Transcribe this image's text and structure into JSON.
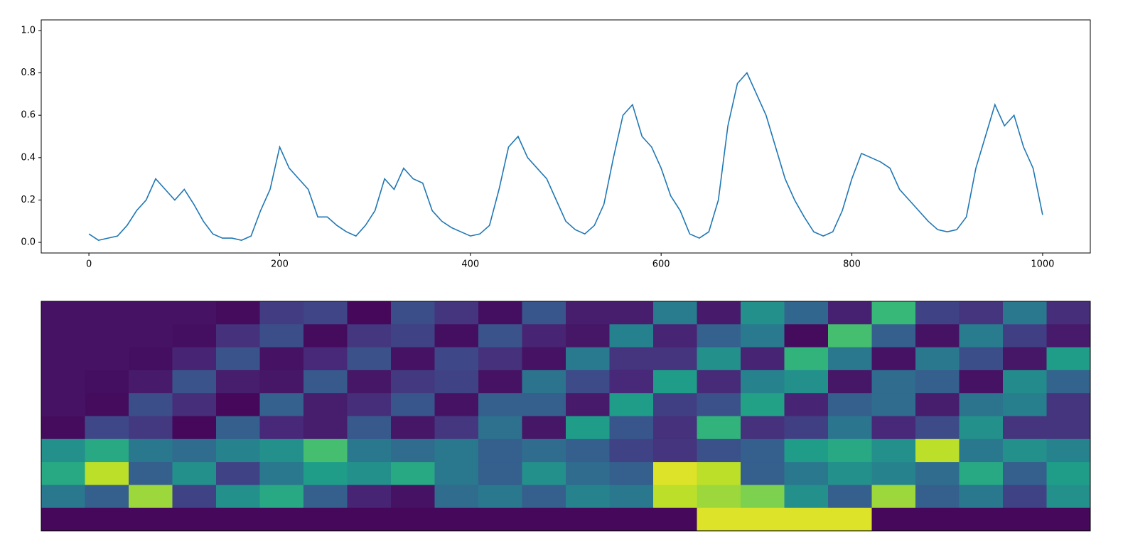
{
  "chart_data": [
    {
      "type": "line",
      "x": [
        0,
        10,
        20,
        30,
        40,
        50,
        60,
        70,
        80,
        90,
        100,
        110,
        120,
        130,
        140,
        150,
        160,
        170,
        180,
        190,
        200,
        210,
        220,
        230,
        240,
        250,
        260,
        270,
        280,
        290,
        300,
        310,
        320,
        330,
        340,
        350,
        360,
        370,
        380,
        390,
        400,
        410,
        420,
        430,
        440,
        450,
        460,
        470,
        480,
        490,
        500,
        510,
        520,
        530,
        540,
        550,
        560,
        570,
        580,
        590,
        600,
        610,
        620,
        630,
        640,
        650,
        660,
        670,
        680,
        690,
        700,
        710,
        720,
        730,
        740,
        750,
        760,
        770,
        780,
        790,
        800,
        810,
        820,
        830,
        840,
        850,
        860,
        870,
        880,
        890,
        900,
        910,
        920,
        930,
        940,
        950,
        960,
        970,
        980,
        990,
        1000
      ],
      "series": [
        {
          "color": "#1f77b4",
          "values": [
            0.04,
            0.01,
            0.02,
            0.03,
            0.08,
            0.15,
            0.2,
            0.3,
            0.25,
            0.2,
            0.25,
            0.18,
            0.1,
            0.04,
            0.02,
            0.02,
            0.01,
            0.03,
            0.15,
            0.25,
            0.45,
            0.35,
            0.3,
            0.25,
            0.12,
            0.12,
            0.08,
            0.05,
            0.03,
            0.08,
            0.15,
            0.3,
            0.25,
            0.35,
            0.3,
            0.28,
            0.15,
            0.1,
            0.07,
            0.05,
            0.03,
            0.04,
            0.08,
            0.25,
            0.45,
            0.5,
            0.4,
            0.35,
            0.3,
            0.2,
            0.1,
            0.06,
            0.04,
            0.08,
            0.18,
            0.4,
            0.6,
            0.65,
            0.5,
            0.45,
            0.35,
            0.22,
            0.15,
            0.04,
            0.02,
            0.05,
            0.2,
            0.55,
            0.75,
            0.8,
            0.7,
            0.6,
            0.45,
            0.3,
            0.2,
            0.12,
            0.05,
            0.03,
            0.05,
            0.15,
            0.3,
            0.42,
            0.4,
            0.38,
            0.35,
            0.25,
            0.2,
            0.15,
            0.1,
            0.06,
            0.05,
            0.06,
            0.12,
            0.35,
            0.5,
            0.65,
            0.55,
            0.6,
            0.45,
            0.35,
            0.13
          ]
        }
      ],
      "xlim": [
        -50,
        1050
      ],
      "xticks": [
        0,
        200,
        400,
        600,
        800,
        1000
      ],
      "ylim": [
        -0.05,
        1.05
      ],
      "yticks": [
        {
          "value": 0,
          "label": "0.0"
        },
        {
          "value": 0.2,
          "label": "0.2"
        },
        {
          "value": 0.4,
          "label": "0.4"
        },
        {
          "value": 0.6,
          "label": "0.6"
        },
        {
          "value": 0.8,
          "label": "0.8"
        },
        {
          "value": 1,
          "label": "1.0"
        }
      ]
    },
    {
      "type": "heatmap",
      "cmap": "viridis",
      "values": [
        [
          0.05,
          0.05,
          0.05,
          0.05,
          0.03,
          0.18,
          0.21,
          0.02,
          0.24,
          0.15,
          0.04,
          0.27,
          0.08,
          0.08,
          0.42,
          0.07,
          0.5,
          0.33,
          0.09,
          0.67,
          0.2,
          0.15,
          0.4,
          0.13
        ],
        [
          0.05,
          0.05,
          0.05,
          0.04,
          0.14,
          0.24,
          0.03,
          0.16,
          0.2,
          0.04,
          0.26,
          0.1,
          0.06,
          0.44,
          0.1,
          0.31,
          0.41,
          0.03,
          0.7,
          0.3,
          0.05,
          0.42,
          0.19,
          0.07
        ],
        [
          0.05,
          0.05,
          0.04,
          0.1,
          0.26,
          0.05,
          0.11,
          0.25,
          0.05,
          0.22,
          0.14,
          0.05,
          0.41,
          0.15,
          0.15,
          0.5,
          0.1,
          0.65,
          0.4,
          0.05,
          0.4,
          0.24,
          0.06,
          0.55
        ],
        [
          0.05,
          0.04,
          0.07,
          0.26,
          0.08,
          0.06,
          0.28,
          0.06,
          0.17,
          0.2,
          0.05,
          0.38,
          0.23,
          0.11,
          0.55,
          0.12,
          0.45,
          0.5,
          0.06,
          0.35,
          0.3,
          0.05,
          0.48,
          0.32
        ],
        [
          0.05,
          0.03,
          0.24,
          0.13,
          0.02,
          0.31,
          0.08,
          0.13,
          0.27,
          0.05,
          0.3,
          0.3,
          0.07,
          0.55,
          0.19,
          0.25,
          0.57,
          0.1,
          0.3,
          0.35,
          0.08,
          0.38,
          0.43,
          0.15
        ],
        [
          0.03,
          0.22,
          0.17,
          0.02,
          0.3,
          0.11,
          0.08,
          0.28,
          0.06,
          0.16,
          0.37,
          0.06,
          0.55,
          0.27,
          0.14,
          0.65,
          0.14,
          0.19,
          0.39,
          0.11,
          0.23,
          0.5,
          0.15,
          0.15
        ],
        [
          0.5,
          0.6,
          0.4,
          0.35,
          0.45,
          0.5,
          0.7,
          0.4,
          0.35,
          0.4,
          0.3,
          0.35,
          0.3,
          0.2,
          0.15,
          0.25,
          0.3,
          0.55,
          0.6,
          0.5,
          0.9,
          0.4,
          0.5,
          0.45
        ],
        [
          0.6,
          0.9,
          0.3,
          0.5,
          0.2,
          0.4,
          0.55,
          0.5,
          0.6,
          0.4,
          0.3,
          0.5,
          0.35,
          0.3,
          0.95,
          0.9,
          0.3,
          0.4,
          0.5,
          0.45,
          0.35,
          0.6,
          0.3,
          0.55
        ],
        [
          0.4,
          0.3,
          0.85,
          0.2,
          0.5,
          0.6,
          0.3,
          0.1,
          0.05,
          0.35,
          0.4,
          0.3,
          0.45,
          0.4,
          0.9,
          0.85,
          0.8,
          0.5,
          0.3,
          0.85,
          0.3,
          0.4,
          0.2,
          0.5
        ],
        [
          0.02,
          0.02,
          0.02,
          0.02,
          0.02,
          0.02,
          0.02,
          0.02,
          0.02,
          0.02,
          0.02,
          0.02,
          0.02,
          0.02,
          0.02,
          0.95,
          0.95,
          0.95,
          0.95,
          0.02,
          0.02,
          0.02,
          0.02,
          0.02
        ]
      ]
    }
  ]
}
